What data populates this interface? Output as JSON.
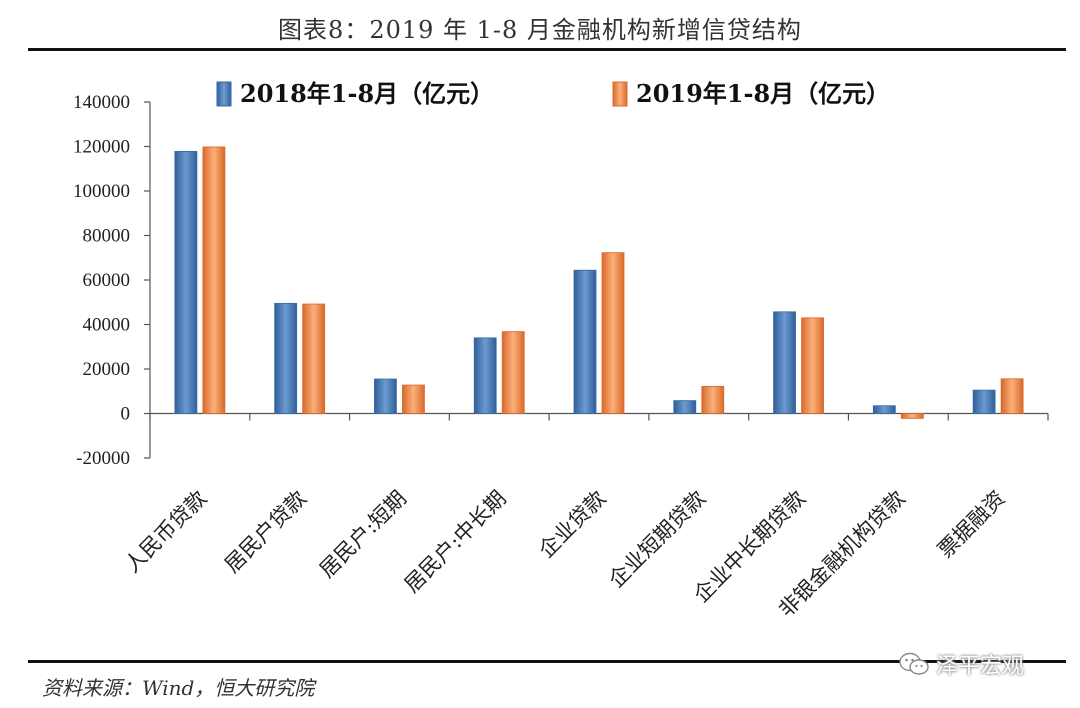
{
  "title": "图表8：2019 年 1-8 月金融机构新增信贷结构",
  "source": "资料来源：Wind，恒大研究院",
  "watermark": "泽平宏观",
  "colors": {
    "series_2018": "#4f81bd",
    "series_2019": "#f79646"
  },
  "chart_data": {
    "type": "bar",
    "title": "",
    "xlabel": "",
    "ylabel": "",
    "ylim": [
      -20000,
      140000
    ],
    "yticks": [
      -20000,
      0,
      20000,
      40000,
      60000,
      80000,
      100000,
      120000,
      140000
    ],
    "legend_position": "top",
    "categories": [
      "人民币贷款",
      "居民户贷款",
      "居民户:短期",
      "居民户:中长期",
      "企业贷款",
      "企业短期贷款",
      "企业中长期贷款",
      "非银金融机构贷款",
      "票据融资"
    ],
    "series": [
      {
        "name": "2018年1-8月（亿元）",
        "values": [
          117800,
          49500,
          15500,
          34000,
          64400,
          5800,
          45700,
          3500,
          10500
        ]
      },
      {
        "name": "2019年1-8月（亿元）",
        "values": [
          119800,
          49200,
          12800,
          36800,
          72300,
          12200,
          43000,
          -2200,
          15600
        ]
      }
    ]
  }
}
